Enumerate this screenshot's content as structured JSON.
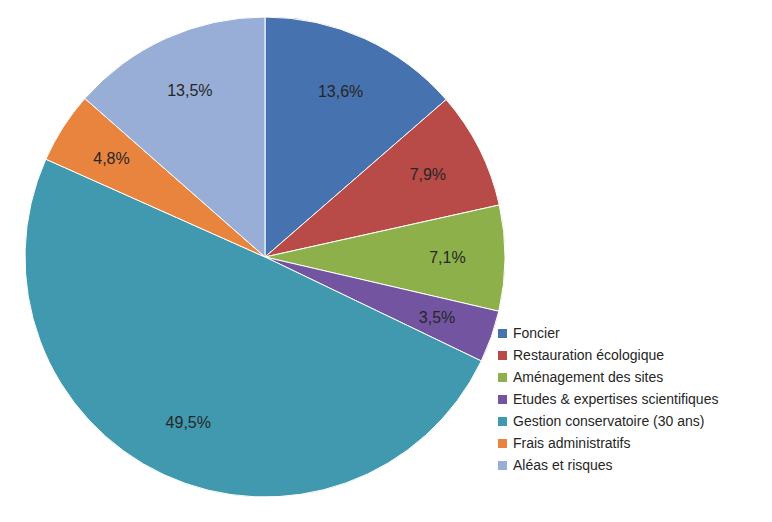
{
  "chart_data": {
    "type": "pie",
    "categories": [
      "Foncier",
      "Restauration écologique",
      "Aménagement des sites",
      "Etudes & expertises scientifiques",
      "Gestion conservatoire (30 ans)",
      "Frais administratifs",
      "Aléas et risques"
    ],
    "values": [
      13.6,
      7.9,
      7.1,
      3.5,
      49.5,
      4.8,
      13.5
    ],
    "value_labels": [
      "13,6%",
      "7,9%",
      "7,1%",
      "3,5%",
      "49,5%",
      "4,8%",
      "13,5%"
    ],
    "colors": [
      "#4672AF",
      "#B84A48",
      "#8EB04A",
      "#7254A0",
      "#4099AE",
      "#E8843E",
      "#98AED6"
    ],
    "data_labels": true,
    "legend": "right"
  }
}
